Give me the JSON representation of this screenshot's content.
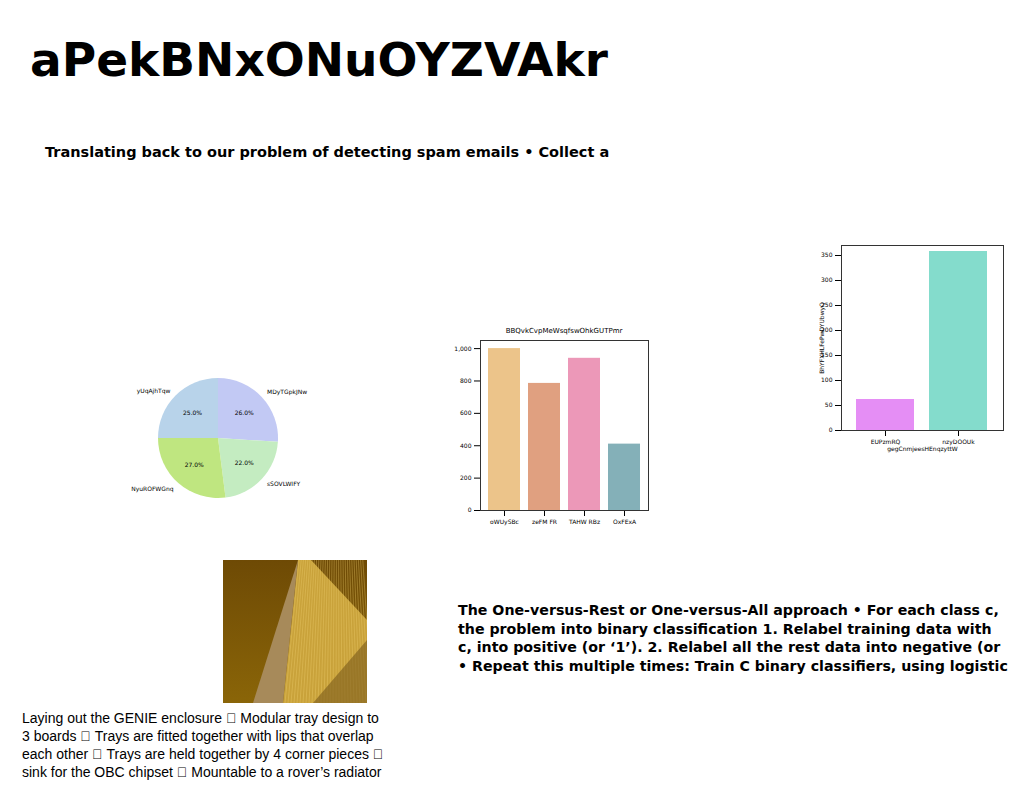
{
  "title": "aPekBNxONuOYZVAkr",
  "subtitle": "Translating back to our problem of detecting spam emails • Collect a",
  "text_right": [
    "The One-versus-Rest or One-versus-All approach • For each class c,",
    "the problem into binary classification 1. Relabel training data with",
    "c, into positive (or ‘1’). 2. Relabel all the rest data into negative (or",
    "• Repeat this multiple times: Train C binary classifiers, using logistic"
  ],
  "text_left": [
    "Laying out the GENIE enclosure  Modular tray design to",
    "3 boards  Trays are fitted together with lips that overlap",
    "each other  Trays are held together by 4 corner pieces ",
    "sink for the OBC chipset  Mountable to a rover’s radiator"
  ],
  "chart_data": [
    {
      "type": "pie",
      "categories": [
        "MDyTGpkJNw",
        "sSOVLWIFY",
        "NyuROFWGnq",
        "yUqAjhTqw"
      ],
      "values": [
        26,
        22,
        27,
        25
      ],
      "value_labels": [
        "26.0%",
        "22.0%",
        "27.0%",
        "25.0%"
      ],
      "colors": [
        "#c2c9f4",
        "#c4ecc1",
        "#bfe680",
        "#b8d3ea"
      ],
      "data_labels": true
    },
    {
      "type": "bar",
      "title": "BBQvkCvpMeWsqfswOhkGUTPmr",
      "categories": [
        "oWUySBc",
        "zeFM FR",
        "TAHW RBz",
        "OxFExA"
      ],
      "values": [
        1000,
        785,
        940,
        410
      ],
      "colors": [
        "#ecc48a",
        "#e0a080",
        "#ec98b8",
        "#84b0b8"
      ],
      "ylim": [
        0,
        1050
      ],
      "yticks": [
        0,
        200,
        400,
        600,
        800,
        1000
      ]
    },
    {
      "type": "bar",
      "xlabel": "gegCnmjeesHEnqzyttW",
      "ylabel": "BhYFXHLFePwDYUbwyQ",
      "categories": [
        "EUPzmRQ",
        "nzyDOOUk"
      ],
      "values": [
        62,
        358
      ],
      "colors": [
        "#e58ef5",
        "#84dccc"
      ],
      "ylim": [
        0,
        370
      ],
      "yticks": [
        0,
        50,
        100,
        150,
        200,
        250,
        300,
        350
      ]
    }
  ]
}
